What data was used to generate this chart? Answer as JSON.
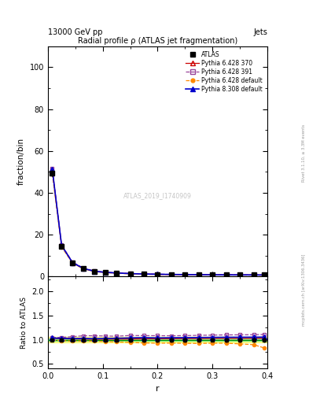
{
  "title": "Radial profile ρ (ATLAS jet fragmentation)",
  "header_left": "13000 GeV pp",
  "header_right": "Jets",
  "xlabel": "r",
  "ylabel_main": "fraction/bin",
  "ylabel_ratio": "Ratio to ATLAS",
  "watermark": "ATLAS_2019_I1740909",
  "rivet_label": "Rivet 3.1.10, ≥ 3.3M events",
  "mcplots_label": "mcplots.cern.ch [arXiv:1306.3436]",
  "xlim": [
    0,
    0.4
  ],
  "ylim_main": [
    0,
    110
  ],
  "ylim_ratio": [
    0.4,
    2.3
  ],
  "yticks_main": [
    0,
    20,
    40,
    60,
    80,
    100
  ],
  "yticks_ratio": [
    0.5,
    1.0,
    1.5,
    2.0
  ],
  "background_color": "#ffffff",
  "x_data": [
    0.008,
    0.025,
    0.045,
    0.065,
    0.085,
    0.105,
    0.125,
    0.15,
    0.175,
    0.2,
    0.225,
    0.25,
    0.275,
    0.3,
    0.325,
    0.35,
    0.375,
    0.395
  ],
  "atlas_y": [
    49.5,
    14.5,
    6.5,
    3.8,
    2.5,
    2.0,
    1.7,
    1.4,
    1.2,
    1.1,
    1.0,
    0.95,
    0.9,
    0.85,
    0.82,
    0.8,
    0.78,
    0.75
  ],
  "atlas_yerr": [
    1.5,
    0.5,
    0.3,
    0.2,
    0.15,
    0.12,
    0.1,
    0.08,
    0.07,
    0.06,
    0.05,
    0.05,
    0.05,
    0.04,
    0.04,
    0.04,
    0.04,
    0.04
  ],
  "p6_370_y": [
    51.0,
    14.8,
    6.6,
    3.85,
    2.52,
    2.02,
    1.72,
    1.42,
    1.22,
    1.12,
    1.02,
    0.97,
    0.92,
    0.87,
    0.84,
    0.82,
    0.8,
    0.77
  ],
  "p6_391_y": [
    51.5,
    15.2,
    6.9,
    4.1,
    2.7,
    2.15,
    1.82,
    1.52,
    1.3,
    1.19,
    1.08,
    1.03,
    0.98,
    0.93,
    0.9,
    0.88,
    0.86,
    0.83
  ],
  "p6_def_y": [
    49.0,
    14.2,
    6.3,
    3.7,
    2.42,
    1.92,
    1.62,
    1.32,
    1.12,
    1.02,
    0.93,
    0.88,
    0.83,
    0.79,
    0.76,
    0.73,
    0.7,
    0.62
  ],
  "p8_308_y": [
    51.2,
    14.9,
    6.65,
    3.9,
    2.55,
    2.05,
    1.75,
    1.45,
    1.25,
    1.14,
    1.04,
    0.99,
    0.94,
    0.89,
    0.86,
    0.84,
    0.82,
    0.79
  ],
  "ratio_p6_370": [
    1.03,
    1.02,
    1.015,
    1.013,
    1.008,
    1.01,
    1.012,
    1.014,
    1.017,
    1.018,
    1.02,
    1.021,
    1.022,
    1.024,
    1.024,
    1.025,
    1.026,
    1.027
  ],
  "ratio_p6_391": [
    1.04,
    1.048,
    1.062,
    1.08,
    1.08,
    1.075,
    1.071,
    1.086,
    1.083,
    1.082,
    1.08,
    1.084,
    1.089,
    1.094,
    1.098,
    1.1,
    1.103,
    1.107
  ],
  "ratio_p6_def": [
    0.99,
    0.979,
    0.969,
    0.974,
    0.968,
    0.96,
    0.953,
    0.943,
    0.933,
    0.927,
    0.93,
    0.926,
    0.922,
    0.929,
    0.927,
    0.913,
    0.897,
    0.827
  ],
  "ratio_p8_308": [
    1.034,
    1.028,
    1.023,
    1.026,
    1.02,
    1.025,
    1.029,
    1.036,
    1.042,
    1.036,
    1.04,
    1.042,
    1.044,
    1.047,
    1.049,
    1.05,
    1.051,
    1.053
  ],
  "atlas_color": "#000000",
  "p6_370_color": "#cc0000",
  "p6_391_color": "#994499",
  "p6_def_color": "#ff8800",
  "p8_308_color": "#0000cc",
  "green_band_color": "#90ee90",
  "yellow_band_color": "#ffff80"
}
